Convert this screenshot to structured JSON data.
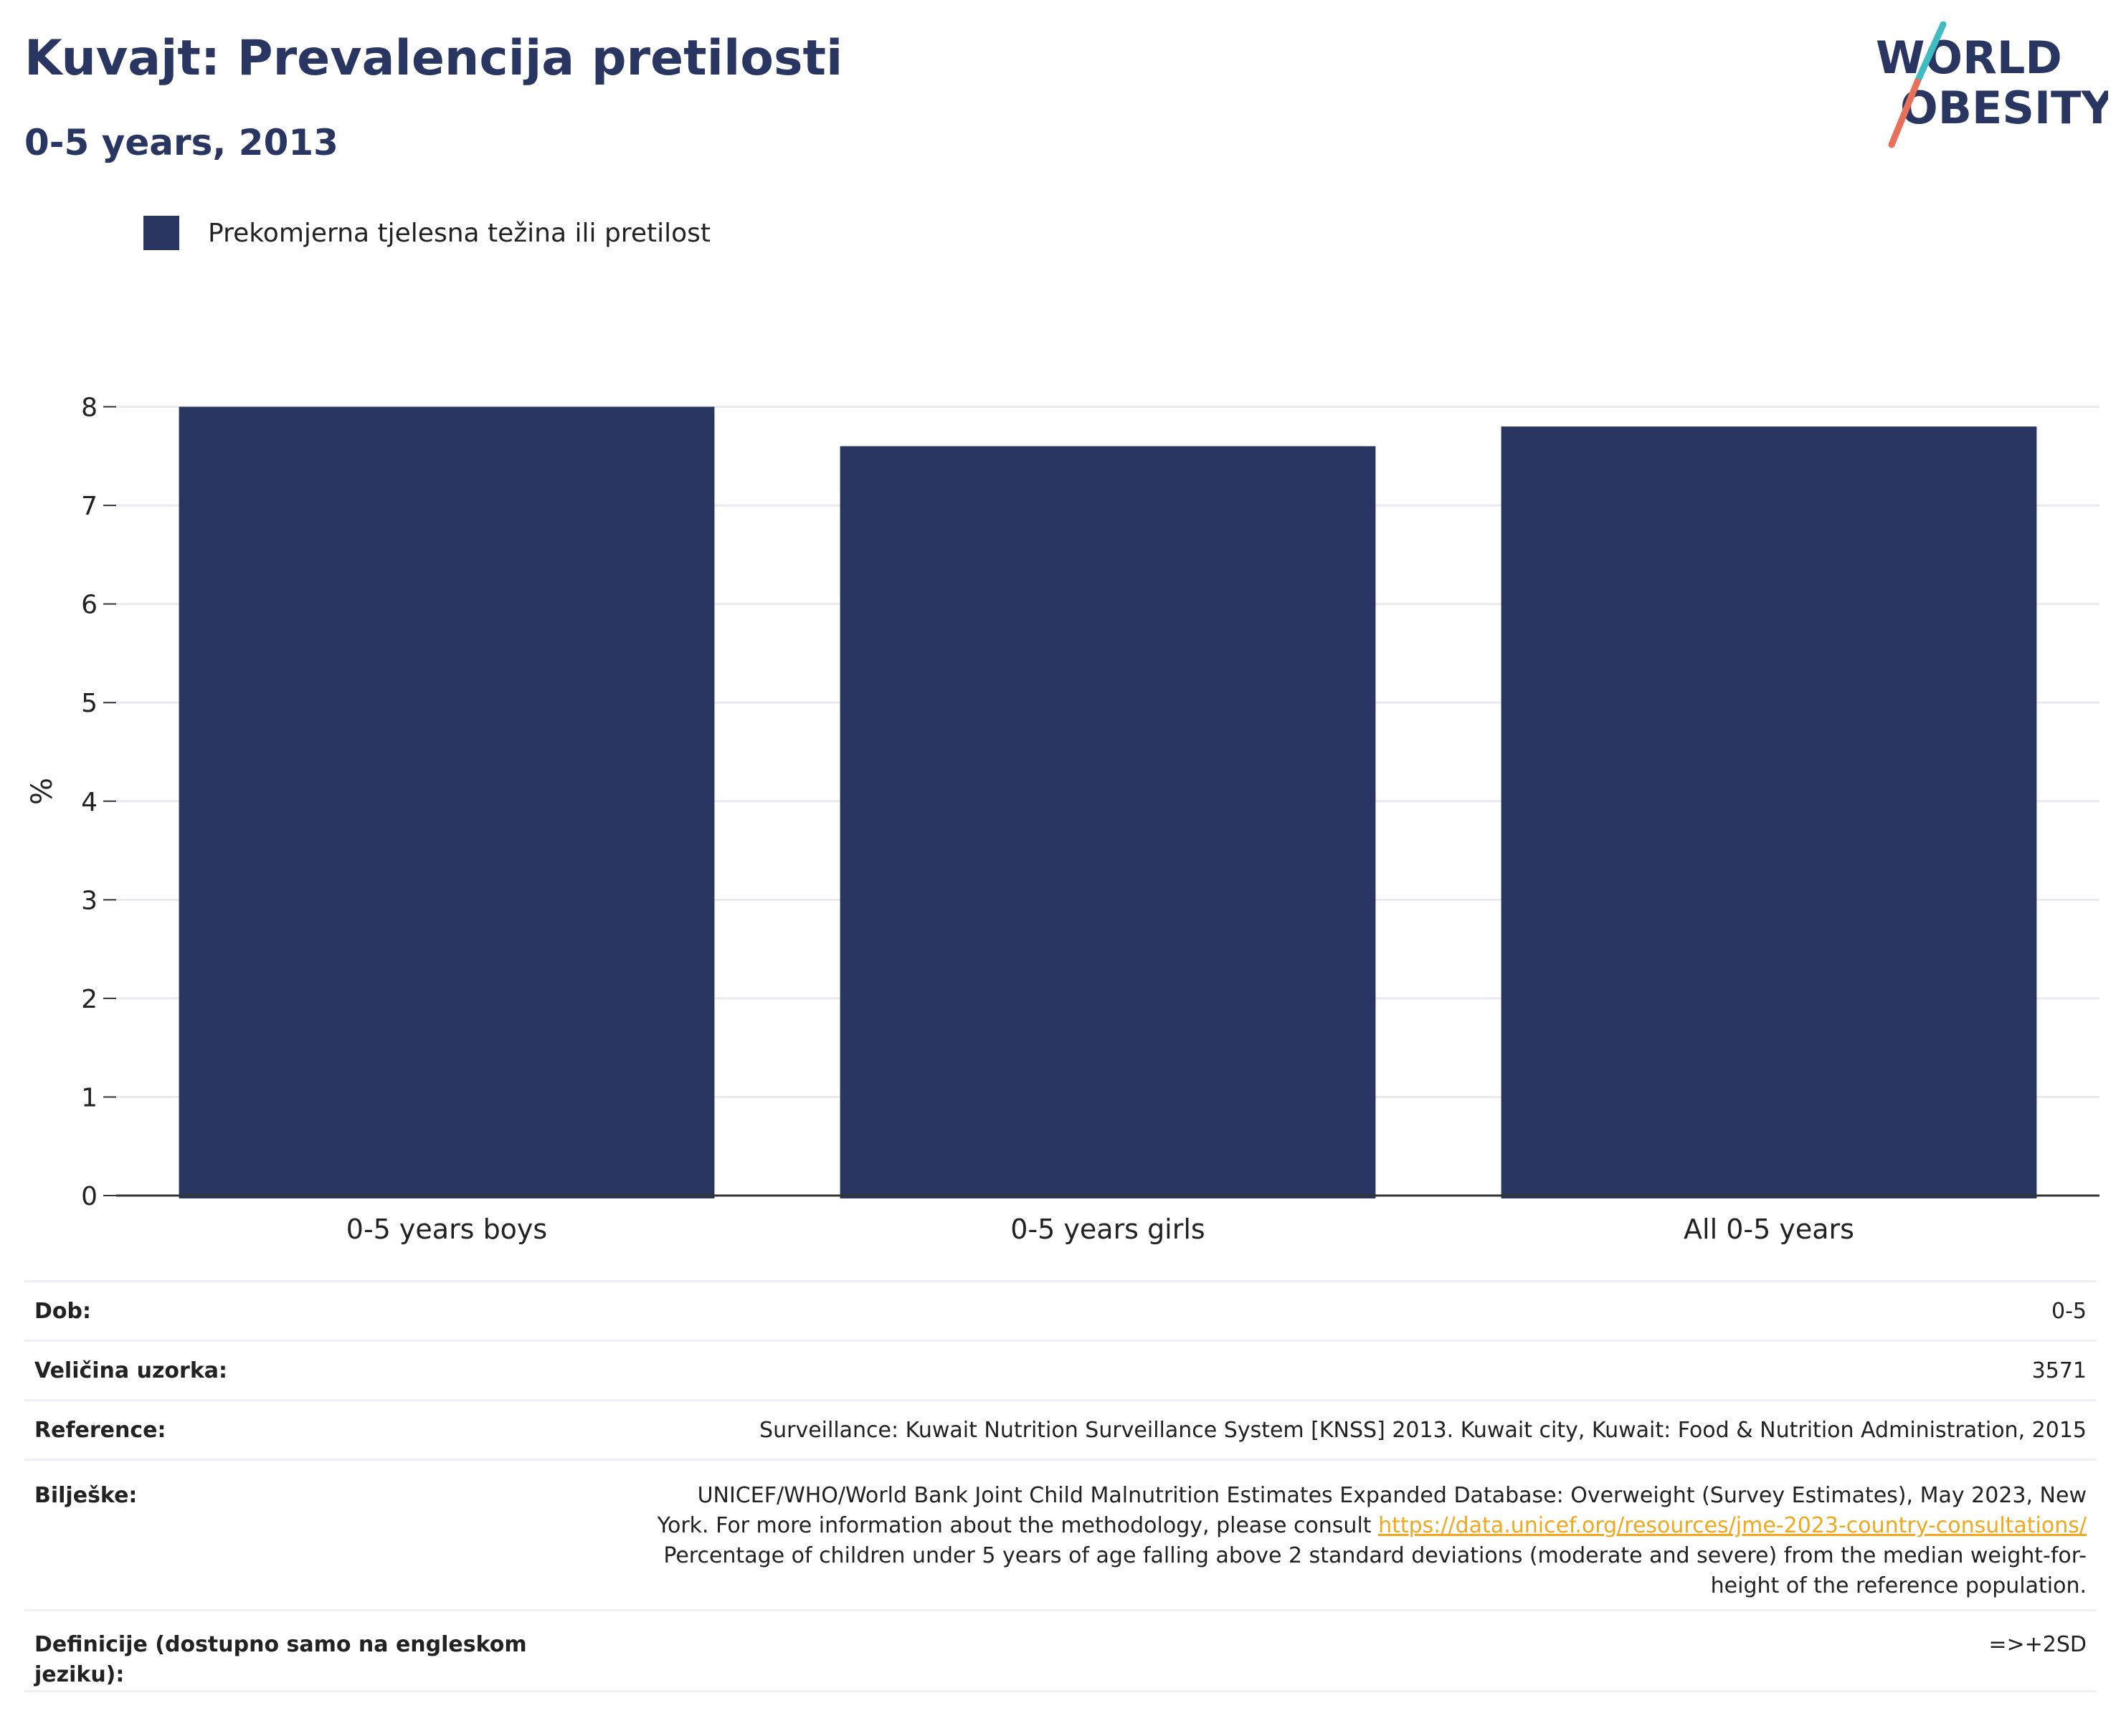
{
  "header": {
    "title": "Kuvajt: Prevalencija pretilosti",
    "subtitle": "0-5 years, 2013"
  },
  "logo": {
    "line1": "WORLD",
    "line2": "OBESITY",
    "colors": {
      "text": "#2a3662",
      "slash_top": "#3fbcbf",
      "slash_bottom": "#e8705a"
    }
  },
  "legend": {
    "label": "Prekomjerna tjelesna težina ili pretilost",
    "color": "#2a3662"
  },
  "chart_data": {
    "type": "bar",
    "categories": [
      "0-5 years boys",
      "0-5 years girls",
      "All 0-5 years"
    ],
    "series": [
      {
        "name": "Prekomjerna tjelesna težina ili pretilost",
        "values": [
          8.0,
          7.6,
          7.8
        ],
        "color": "#2a3662"
      }
    ],
    "ylabel": "%",
    "ylim": [
      0,
      8.2
    ],
    "yticks": [
      0,
      1,
      2,
      3,
      4,
      5,
      6,
      7,
      8
    ],
    "grid": true,
    "legend_position": "top-left"
  },
  "info": {
    "age_label": "Dob:",
    "age_value": "0-5",
    "sample_label": "Veličina uzorka:",
    "sample_value": "3571",
    "reference_label": "Reference:",
    "reference_value": "Surveillance: Kuwait Nutrition Surveillance System [KNSS] 2013. Kuwait city, Kuwait: Food & Nutrition Administration, 2015",
    "notes_label": "Bilješke:",
    "notes_line1": "UNICEF/WHO/World Bank Joint Child Malnutrition Estimates Expanded Database: Overweight (Survey Estimates), May 2023, New",
    "notes_line2_prefix": "York. For more information about the methodology, please consult ",
    "notes_link": "https://data.unicef.org/resources/jme-2023-country-consultations/",
    "notes_line3": "Percentage of children under 5 years of age falling above 2 standard deviations (moderate and severe) from the median weight-for-",
    "notes_line4": "height of the reference population.",
    "definitions_label": "Definicije (dostupno samo na engleskom jeziku):",
    "definitions_value": "=>+2SD"
  }
}
